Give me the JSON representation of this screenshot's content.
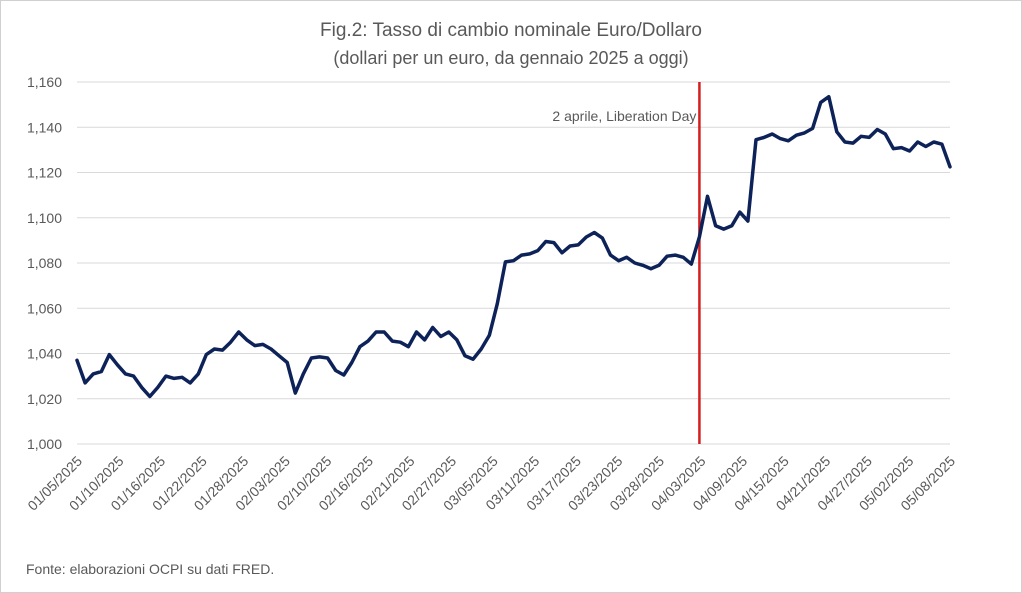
{
  "chart_data": {
    "type": "line",
    "title": "Fig.2: Tasso di cambio nominale Euro/Dollaro",
    "subtitle": "(dollari per un euro, da gennaio 2025 a oggi)",
    "source": "Fonte: elaborazioni OCPI su dati FRED.",
    "ylim": [
      1.0,
      1.16
    ],
    "yticks": [
      "1,000",
      "1,020",
      "1,040",
      "1,060",
      "1,080",
      "1,100",
      "1,120",
      "1,140",
      "1,160"
    ],
    "xticks": [
      "01/05/2025",
      "01/10/2025",
      "01/16/2025",
      "01/22/2025",
      "01/28/2025",
      "02/03/2025",
      "02/10/2025",
      "02/16/2025",
      "02/21/2025",
      "02/27/2025",
      "03/05/2025",
      "03/11/2025",
      "03/17/2025",
      "03/23/2025",
      "03/28/2025",
      "04/03/2025",
      "04/09/2025",
      "04/15/2025",
      "04/21/2025",
      "04/27/2025",
      "05/02/2025",
      "05/08/2025"
    ],
    "grid": true,
    "series": [
      {
        "color": "#0d2258",
        "values": [
          1.037,
          1.027,
          1.031,
          1.032,
          1.0395,
          1.035,
          1.031,
          1.03,
          1.025,
          1.021,
          1.025,
          1.03,
          1.029,
          1.0295,
          1.027,
          1.031,
          1.0395,
          1.042,
          1.0415,
          1.045,
          1.0495,
          1.046,
          1.0435,
          1.044,
          1.042,
          1.039,
          1.036,
          1.0225,
          1.031,
          1.038,
          1.0385,
          1.038,
          1.0325,
          1.0305,
          1.036,
          1.043,
          1.0455,
          1.0495,
          1.0495,
          1.0455,
          1.045,
          1.043,
          1.0495,
          1.046,
          1.0515,
          1.0475,
          1.0495,
          1.046,
          1.039,
          1.0375,
          1.042,
          1.048,
          1.062,
          1.0805,
          1.081,
          1.0835,
          1.084,
          1.0855,
          1.0895,
          1.089,
          1.0845,
          1.0875,
          1.088,
          1.0915,
          1.0935,
          1.091,
          1.0835,
          1.081,
          1.0825,
          1.08,
          1.079,
          1.0775,
          1.079,
          1.083,
          1.0835,
          1.0825,
          1.0795,
          1.0915,
          1.1095,
          1.0965,
          1.095,
          1.0965,
          1.1025,
          1.0985,
          1.1345,
          1.1355,
          1.137,
          1.135,
          1.134,
          1.1365,
          1.1375,
          1.1395,
          1.151,
          1.1535,
          1.138,
          1.1335,
          1.133,
          1.136,
          1.1355,
          1.139,
          1.137,
          1.1305,
          1.131,
          1.1295,
          1.1335,
          1.1315,
          1.1335,
          1.1325,
          1.1225
        ]
      }
    ],
    "annotation": {
      "label": "2 aprile, Liberation Day",
      "x_index": 77,
      "color": "#d41f1f"
    }
  }
}
